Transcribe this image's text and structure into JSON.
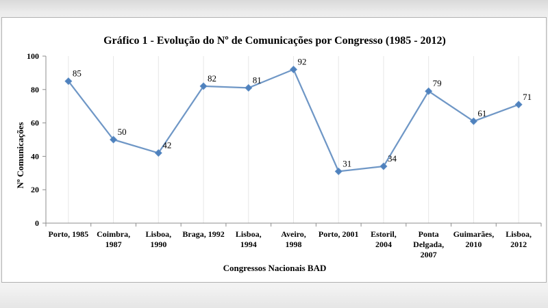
{
  "chart_data": {
    "type": "line",
    "title": "Gráfico 1 - Evolução do Nº de Comunicações por Congresso (1985 - 2012)",
    "xlabel": "Congressos Nacionais BAD",
    "ylabel": "Nº Comunicações",
    "ylim": [
      0,
      100
    ],
    "yticks": [
      "0",
      "20",
      "40",
      "60",
      "80",
      "100"
    ],
    "categories": [
      [
        "Porto, 1985"
      ],
      [
        "Coimbra,",
        "1987"
      ],
      [
        "Lisboa,",
        "1990"
      ],
      [
        "Braga, 1992"
      ],
      [
        "Lisboa,",
        "1994"
      ],
      [
        "Aveiro,",
        "1998"
      ],
      [
        "Porto, 2001"
      ],
      [
        "Estoril,",
        "2004"
      ],
      [
        "Ponta",
        "Delgada,",
        "2007"
      ],
      [
        "Guimarães,",
        "2010"
      ],
      [
        "Lisboa,",
        "2012"
      ]
    ],
    "values": [
      85,
      50,
      42,
      82,
      81,
      92,
      31,
      34,
      79,
      61,
      71
    ],
    "grid": true,
    "line_color": "#6f97c6",
    "marker_color": "#4f81bd"
  }
}
